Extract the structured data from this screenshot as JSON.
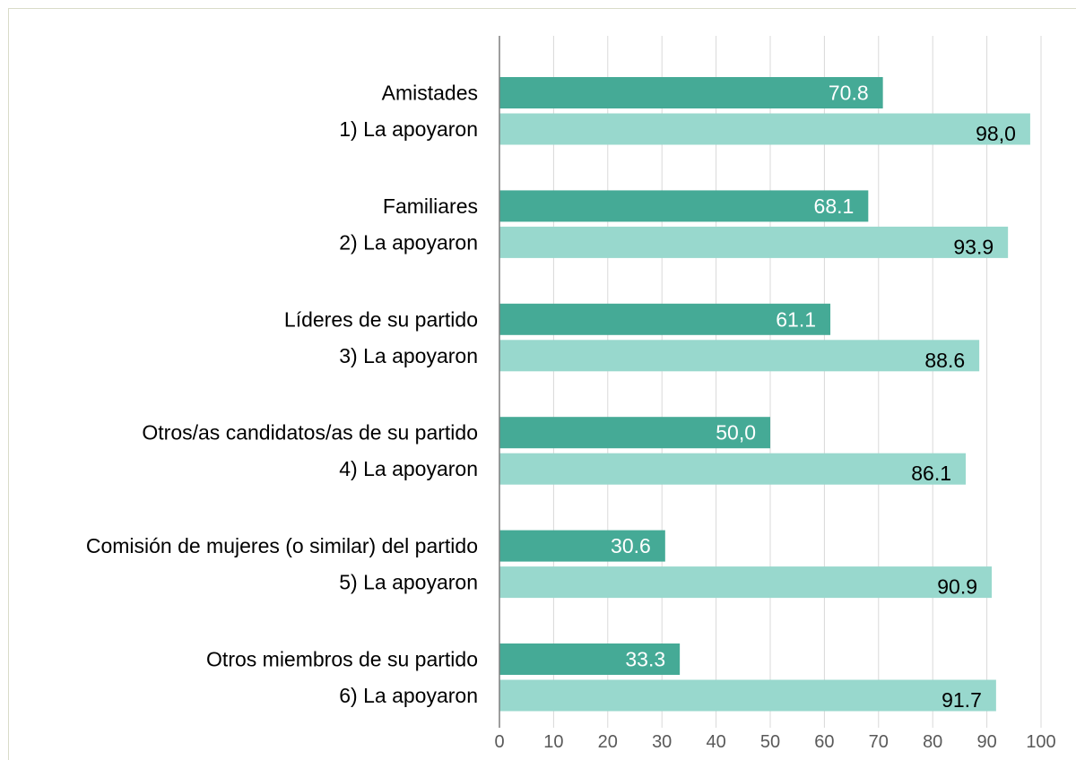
{
  "chart_data": {
    "type": "bar",
    "orientation": "horizontal",
    "title": "",
    "xlabel": "",
    "ylabel": "",
    "xlim": [
      0,
      100
    ],
    "x_ticks": [
      0,
      10,
      20,
      30,
      40,
      50,
      60,
      70,
      80,
      90,
      100
    ],
    "grid": true,
    "legend": "none",
    "colors": {
      "dark": "#45aa96",
      "light": "#98d8cd",
      "gridline": "#d9d9d9",
      "axis": "#7f7f7f"
    },
    "rows": [
      {
        "label": "Amistades",
        "value": 70.8,
        "value_label": "70.8",
        "style": "dark"
      },
      {
        "label": "1) La apoyaron",
        "value": 98.0,
        "value_label": "98,0",
        "style": "light"
      },
      {
        "label": "Familiares",
        "value": 68.1,
        "value_label": "68.1",
        "style": "dark"
      },
      {
        "label": "2)  La apoyaron",
        "value": 93.9,
        "value_label": "93.9",
        "style": "light"
      },
      {
        "label": "Líderes de su partido",
        "value": 61.1,
        "value_label": "61.1",
        "style": "dark"
      },
      {
        "label": "3)  La apoyaron",
        "value": 88.6,
        "value_label": "88.6",
        "style": "light"
      },
      {
        "label": "Otros/as candidatos/as de su partido",
        "value": 50.0,
        "value_label": "50,0",
        "style": "dark"
      },
      {
        "label": "4)  La apoyaron",
        "value": 86.1,
        "value_label": "86.1",
        "style": "light"
      },
      {
        "label": "Comisión de mujeres (o similar) del partido",
        "value": 30.6,
        "value_label": "30.6",
        "style": "dark"
      },
      {
        "label": "5)  La apoyaron",
        "value": 90.9,
        "value_label": "90.9",
        "style": "light"
      },
      {
        "label": "Otros miembros de su partido",
        "value": 33.3,
        "value_label": "33.3",
        "style": "dark"
      },
      {
        "label": "6)  La apoyaron",
        "value": 91.7,
        "value_label": "91.7",
        "style": "light"
      }
    ]
  }
}
